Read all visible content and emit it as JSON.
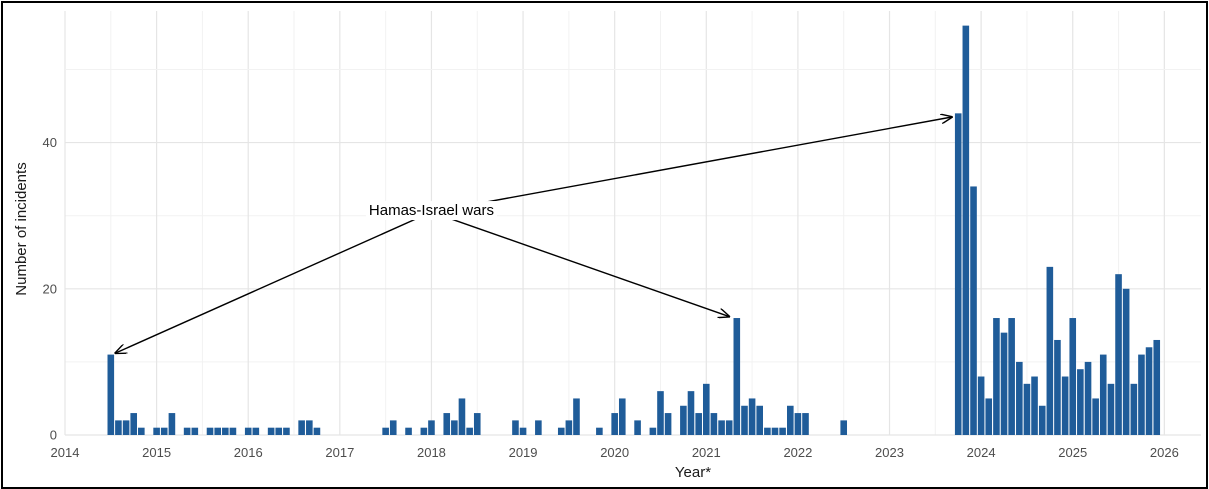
{
  "chart_data": {
    "type": "bar",
    "xlabel": "Year*",
    "ylabel": "Number of incidents",
    "xlim": [
      2014,
      2026.4
    ],
    "ylim": [
      0,
      58
    ],
    "grid": true,
    "bar_color": "#1f5c99",
    "x_ticks": [
      2014,
      2015,
      2016,
      2017,
      2018,
      2019,
      2020,
      2021,
      2022,
      2023,
      2024,
      2025,
      2026
    ],
    "x_tick_labels": [
      "2014",
      "2015",
      "2016",
      "2017",
      "2018",
      "2019",
      "2020",
      "2021",
      "2022",
      "2023",
      "2024",
      "2025",
      "2026"
    ],
    "y_ticks": [
      0,
      20,
      40
    ],
    "y_tick_labels": [
      "0",
      "20",
      "40"
    ],
    "bar_width_years": 0.072,
    "x": [
      2014.5,
      2014.583,
      2014.667,
      2014.75,
      2014.833,
      2015.0,
      2015.083,
      2015.167,
      2015.333,
      2015.417,
      2015.583,
      2015.667,
      2015.75,
      2015.833,
      2016.0,
      2016.083,
      2016.25,
      2016.333,
      2016.417,
      2016.583,
      2016.667,
      2016.75,
      2017.5,
      2017.583,
      2017.75,
      2017.917,
      2018.0,
      2018.167,
      2018.25,
      2018.333,
      2018.417,
      2018.5,
      2018.917,
      2019.0,
      2019.167,
      2019.417,
      2019.5,
      2019.583,
      2019.833,
      2020.0,
      2020.083,
      2020.25,
      2020.417,
      2020.5,
      2020.583,
      2020.75,
      2020.833,
      2020.917,
      2021.0,
      2021.083,
      2021.167,
      2021.25,
      2021.333,
      2021.417,
      2021.5,
      2021.583,
      2021.667,
      2021.75,
      2021.833,
      2021.917,
      2022.0,
      2022.083,
      2022.5,
      2023.75,
      2023.833,
      2023.917,
      2024.0,
      2024.083,
      2024.167,
      2024.25,
      2024.333,
      2024.417,
      2024.5,
      2024.583,
      2024.667,
      2024.75,
      2024.833,
      2024.917,
      2025.0,
      2025.083,
      2025.167,
      2025.25,
      2025.333,
      2025.417,
      2025.5,
      2025.583,
      2025.667,
      2025.75,
      2025.833,
      2025.917
    ],
    "values": [
      11,
      2,
      2,
      3,
      1,
      1,
      1,
      3,
      1,
      1,
      1,
      1,
      1,
      1,
      1,
      1,
      1,
      1,
      1,
      2,
      2,
      1,
      1,
      2,
      1,
      1,
      2,
      3,
      2,
      5,
      1,
      3,
      2,
      1,
      2,
      1,
      2,
      5,
      1,
      3,
      5,
      2,
      1,
      6,
      3,
      4,
      6,
      3,
      7,
      3,
      2,
      2,
      16,
      4,
      5,
      4,
      1,
      1,
      1,
      4,
      3,
      3,
      2,
      44,
      56,
      34,
      8,
      5,
      16,
      14,
      16,
      10,
      7,
      8,
      4,
      23,
      13,
      8,
      16,
      9,
      10,
      5,
      11,
      7,
      22,
      20,
      7,
      11,
      12,
      13
    ],
    "annotations": [
      {
        "text": "Hamas-Israel wars",
        "anchor": [
          2018.0,
          30.5
        ],
        "arrows_to": [
          [
            2014.55,
            11.2
          ],
          [
            2021.25,
            16.2
          ],
          [
            2023.68,
            43.5
          ]
        ]
      }
    ]
  }
}
